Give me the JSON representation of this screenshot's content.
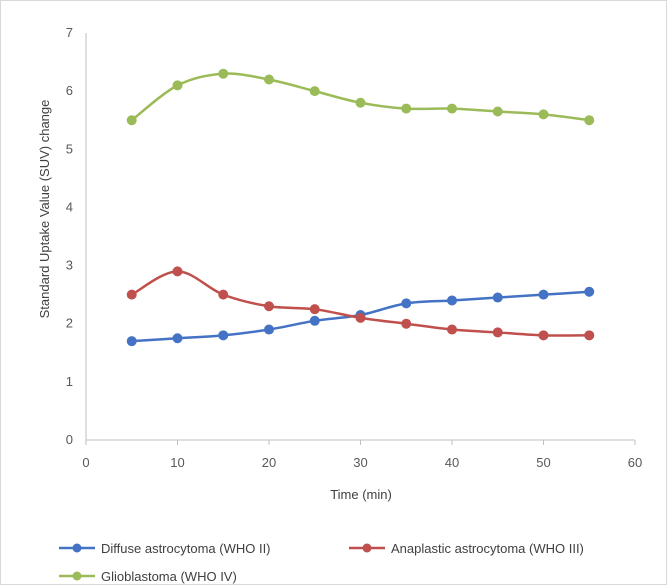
{
  "chart_data": {
    "type": "line",
    "title": "",
    "xlabel": "Time (min)",
    "ylabel": "Standard Uptake Value (SUV) change",
    "xlim": [
      0,
      60
    ],
    "ylim": [
      0,
      7
    ],
    "xticks": [
      "0",
      "10",
      "20",
      "30",
      "40",
      "50",
      "60"
    ],
    "yticks": [
      "0",
      "1",
      "2",
      "3",
      "4",
      "5",
      "6",
      "7"
    ],
    "grid": false,
    "smooth": true,
    "legend_position": "bottom",
    "x": [
      5,
      10,
      15,
      20,
      25,
      30,
      35,
      40,
      45,
      50,
      55
    ],
    "series": [
      {
        "name": "Diffuse astrocytoma (WHO II)",
        "color": "#4472c4",
        "values": [
          1.7,
          1.75,
          1.8,
          1.9,
          2.05,
          2.15,
          2.35,
          2.4,
          2.45,
          2.5,
          2.55
        ]
      },
      {
        "name": "Anaplastic astrocytoma (WHO III)",
        "color": "#c0504d",
        "values": [
          2.5,
          2.9,
          2.5,
          2.3,
          2.25,
          2.1,
          2.0,
          1.9,
          1.85,
          1.8,
          1.8
        ]
      },
      {
        "name": "Glioblastoma (WHO IV)",
        "color": "#9bbb59",
        "values": [
          5.5,
          6.1,
          6.3,
          6.2,
          6.0,
          5.8,
          5.7,
          5.7,
          5.65,
          5.6,
          5.5
        ]
      }
    ]
  }
}
